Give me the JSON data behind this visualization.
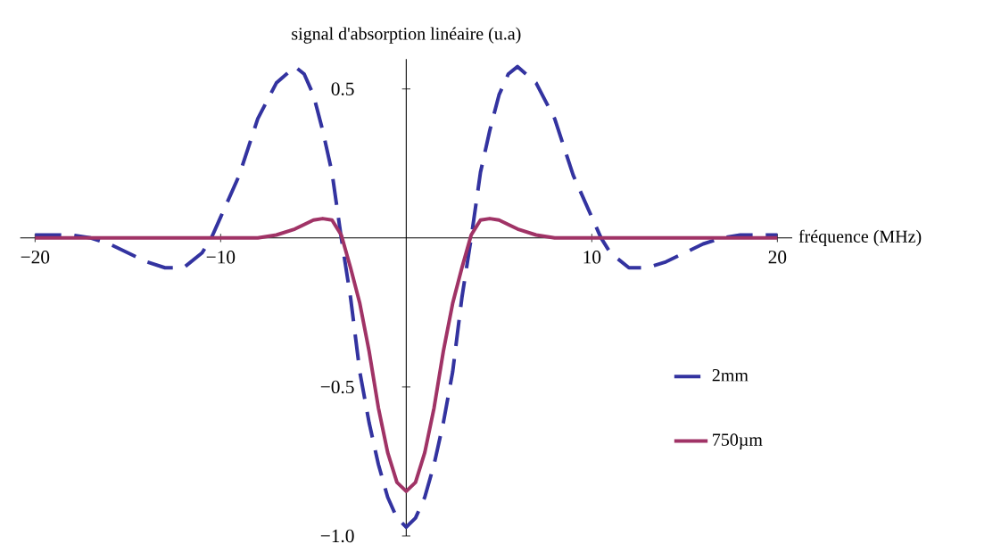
{
  "chart_data": {
    "type": "line",
    "xlabel": "fréquence (MHz)",
    "ylabel": "signal d'absorption linéaire (u.a)",
    "xlim": [
      -20.8,
      20.8
    ],
    "ylim": [
      -1.0,
      0.6
    ],
    "xticks": [
      {
        "value": -20,
        "label": "−20"
      },
      {
        "value": -10,
        "label": "−10"
      },
      10,
      20
    ],
    "yticks": [
      {
        "value": 0.5,
        "label": "0.5"
      },
      {
        "value": -0.5,
        "label": "−0.5"
      },
      {
        "value": -1.0,
        "label": "−1.0"
      }
    ],
    "legend": "bottom right",
    "series": [
      {
        "name": "2mm",
        "color": "#3333a0",
        "line_style": "dashed",
        "x": [
          -20,
          -18,
          -17,
          -16,
          -15,
          -14,
          -13,
          -12,
          -11,
          -10.5,
          -10,
          -9,
          -8,
          -7,
          -6,
          -5.5,
          -5,
          -4.5,
          -4,
          -3.5,
          -3,
          -2.5,
          -2,
          -1.5,
          -1,
          -0.5,
          0,
          0.5,
          1,
          1.5,
          2,
          2.5,
          3,
          3.5,
          4,
          4.5,
          5,
          5.5,
          6,
          7,
          8,
          9,
          10,
          10.5,
          11,
          12,
          13,
          14,
          15,
          16,
          17,
          18,
          20
        ],
        "values": [
          0.01,
          0.01,
          0.0,
          -0.02,
          -0.05,
          -0.08,
          -0.1,
          -0.1,
          -0.05,
          0.0,
          0.07,
          0.21,
          0.4,
          0.52,
          0.575,
          0.55,
          0.48,
          0.36,
          0.22,
          0.0,
          -0.2,
          -0.45,
          -0.62,
          -0.76,
          -0.87,
          -0.94,
          -0.97,
          -0.94,
          -0.87,
          -0.76,
          -0.62,
          -0.45,
          -0.2,
          0.0,
          0.22,
          0.36,
          0.48,
          0.55,
          0.575,
          0.52,
          0.4,
          0.21,
          0.07,
          0.0,
          -0.05,
          -0.1,
          -0.1,
          -0.08,
          -0.05,
          -0.02,
          0.0,
          0.01,
          0.01
        ]
      },
      {
        "name": "750µm",
        "color": "#a03366",
        "line_style": "solid",
        "x": [
          -20,
          -8,
          -7,
          -6,
          -5,
          -4.5,
          -4,
          -3.5,
          -3,
          -2.5,
          -2,
          -1.5,
          -1,
          -0.5,
          0,
          0.5,
          1,
          1.5,
          2,
          2.5,
          3,
          3.5,
          4,
          4.5,
          5,
          6,
          7,
          8,
          20
        ],
        "values": [
          0.0,
          0.0,
          0.01,
          0.03,
          0.06,
          0.065,
          0.06,
          0.01,
          -0.1,
          -0.22,
          -0.38,
          -0.57,
          -0.72,
          -0.82,
          -0.85,
          -0.82,
          -0.72,
          -0.57,
          -0.38,
          -0.22,
          -0.1,
          0.01,
          0.06,
          0.065,
          0.06,
          0.03,
          0.01,
          0.0,
          0.0
        ]
      }
    ]
  }
}
